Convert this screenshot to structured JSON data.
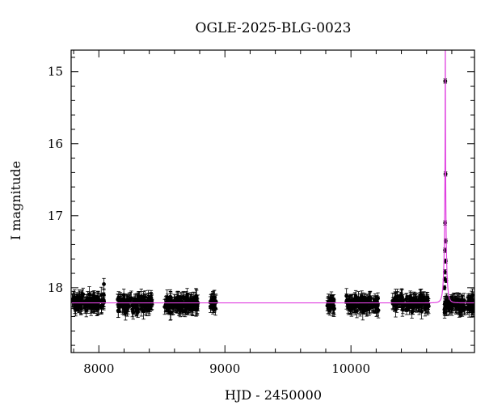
{
  "chart_data": {
    "type": "scatter",
    "title": "OGLE-2025-BLG-0023",
    "xlabel": "HJD - 2450000",
    "ylabel": "I magnitude",
    "xlim": [
      7780,
      10980
    ],
    "ylim": [
      18.9,
      14.7
    ],
    "y_inverted": true,
    "grid": false,
    "x_ticks": [
      8000,
      9000,
      10000
    ],
    "x_tick_labels": [
      "8000",
      "9000",
      "10000"
    ],
    "y_ticks": [
      15,
      16,
      17,
      18
    ],
    "y_tick_labels": [
      "15",
      "16",
      "17",
      "18"
    ],
    "x_minor_step": 200,
    "y_minor_step": 0.2,
    "colors": {
      "points": "#000000",
      "model": "#e040e0",
      "axes": "#000000"
    },
    "baseline_magnitude": 18.21,
    "data_segments": [
      {
        "x_start": 7785,
        "x_end": 8045,
        "y_mean": 18.21,
        "scatter": 0.09,
        "count": 110
      },
      {
        "x_start": 8150,
        "x_end": 8425,
        "y_mean": 18.22,
        "scatter": 0.09,
        "count": 120
      },
      {
        "x_start": 8520,
        "x_end": 8790,
        "y_mean": 18.22,
        "scatter": 0.09,
        "count": 120
      },
      {
        "x_start": 8880,
        "x_end": 8930,
        "y_mean": 18.21,
        "scatter": 0.08,
        "count": 22
      },
      {
        "x_start": 9810,
        "x_end": 9870,
        "y_mean": 18.22,
        "scatter": 0.09,
        "count": 30
      },
      {
        "x_start": 9960,
        "x_end": 10220,
        "y_mean": 18.22,
        "scatter": 0.09,
        "count": 110
      },
      {
        "x_start": 10330,
        "x_end": 10620,
        "y_mean": 18.2,
        "scatter": 0.09,
        "count": 120
      },
      {
        "x_start": 10740,
        "x_end": 10975,
        "y_mean": 18.24,
        "scatter": 0.09,
        "count": 110
      }
    ],
    "outliers": [
      {
        "x": 8040,
        "y": 17.95
      }
    ],
    "peak_points": [
      {
        "x": 10748,
        "y": 15.13
      },
      {
        "x": 10750,
        "y": 16.42
      },
      {
        "x": 10747,
        "y": 17.1
      },
      {
        "x": 10751,
        "y": 17.35
      },
      {
        "x": 10746,
        "y": 17.48
      },
      {
        "x": 10752,
        "y": 17.63
      },
      {
        "x": 10745,
        "y": 17.78
      },
      {
        "x": 10744,
        "y": 17.88
      },
      {
        "x": 10755,
        "y": 17.9
      },
      {
        "x": 10742,
        "y": 18.0
      }
    ],
    "model": {
      "t0": 10748.5,
      "u0": 0.03,
      "tE": 18,
      "fs": 0.8
    }
  }
}
